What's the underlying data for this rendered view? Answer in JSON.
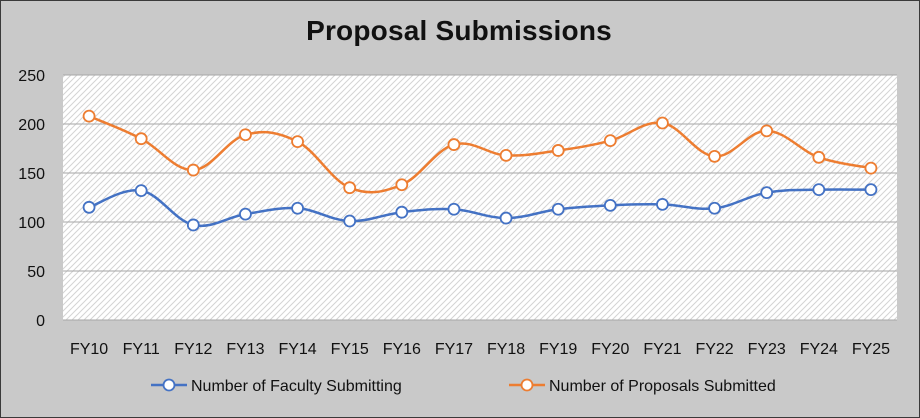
{
  "chart_data": {
    "type": "line",
    "title": "Proposal Submissions",
    "categories": [
      "FY10",
      "FY11",
      "FY12",
      "FY13",
      "FY14",
      "FY15",
      "FY16",
      "FY17",
      "FY18",
      "FY19",
      "FY20",
      "FY21",
      "FY22",
      "FY23",
      "FY24",
      "FY25"
    ],
    "series": [
      {
        "name": "Number of Faculty Submitting",
        "color": "#4472c4",
        "values": [
          115,
          132,
          97,
          108,
          114,
          101,
          110,
          113,
          104,
          113,
          117,
          118,
          114,
          130,
          133,
          133
        ]
      },
      {
        "name": "Number of Proposals Submitted",
        "color": "#ed7d31",
        "values": [
          208,
          185,
          153,
          189,
          182,
          135,
          138,
          179,
          168,
          173,
          183,
          201,
          167,
          193,
          166,
          155
        ]
      }
    ],
    "ylim": [
      0,
      250
    ],
    "yticks": [
      "0",
      "50",
      "100",
      "150",
      "200",
      "250"
    ],
    "grid": true,
    "legend_position": "bottom",
    "plot_background": "diagonal-hatch"
  }
}
